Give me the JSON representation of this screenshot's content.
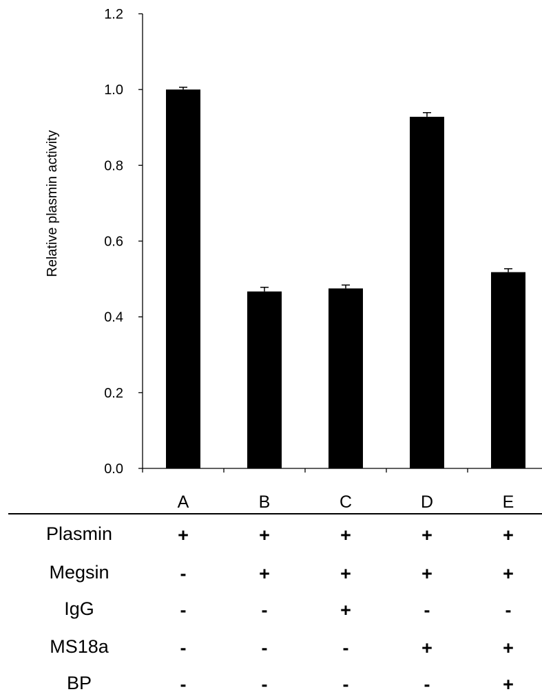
{
  "chart_data": {
    "type": "bar",
    "title": "",
    "xlabel": "",
    "ylabel": "Relative plasmin activity",
    "ylim": [
      0,
      1.2
    ],
    "yticks": [
      "0.0",
      "0.2",
      "0.4",
      "0.6",
      "0.8",
      "1.0",
      "1.2"
    ],
    "categories": [
      "A",
      "B",
      "C",
      "D",
      "E"
    ],
    "values": [
      1.0,
      0.467,
      0.475,
      0.928,
      0.518
    ],
    "errors": [
      0.006,
      0.011,
      0.009,
      0.011,
      0.009
    ],
    "bar_color": "#000000",
    "grid": false,
    "legend": "none"
  },
  "conditions": {
    "rows": [
      {
        "label": "Plasmin",
        "values": [
          "+",
          "+",
          "+",
          "+",
          "+"
        ]
      },
      {
        "label": "Megsin",
        "values": [
          "-",
          "+",
          "+",
          "+",
          "+"
        ]
      },
      {
        "label": "IgG",
        "values": [
          "-",
          "-",
          "+",
          "-",
          "-"
        ]
      },
      {
        "label": "MS18a",
        "values": [
          "-",
          "-",
          "-",
          "+",
          "+"
        ]
      },
      {
        "label": "BP",
        "values": [
          "-",
          "-",
          "-",
          "-",
          "+"
        ]
      }
    ]
  }
}
